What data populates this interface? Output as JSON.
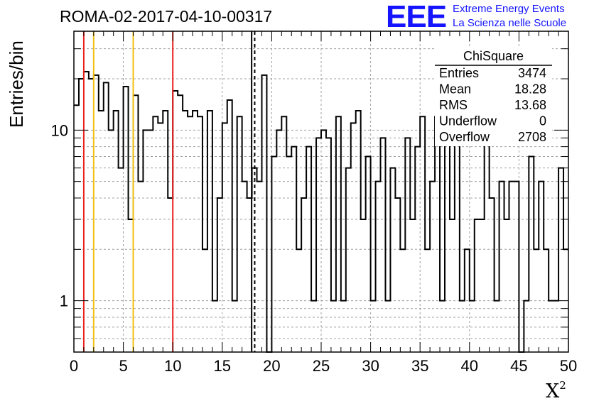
{
  "header": {
    "title": "ROMA-02-2017-04-10-00317",
    "logo_text": "EEE",
    "logo_line1": "Extreme Energy Events",
    "logo_line2": "La Scienza nelle Scuole"
  },
  "colors": {
    "axis": "#000000",
    "grid": "#a0a0a0",
    "histogram": "#000000",
    "red_marker": "#e8221f",
    "yellow_marker": "#f0c010",
    "logo": "#1414ff"
  },
  "chart_data": {
    "type": "bar",
    "histtype": "step",
    "xlabel": "X",
    "xlabel_sup": "2",
    "ylabel": "Entries/bin",
    "xlim": [
      0,
      50
    ],
    "ylim": [
      0.5,
      38
    ],
    "yscale": "log",
    "grid": true,
    "x_ticks": [
      0,
      5,
      10,
      15,
      20,
      25,
      30,
      35,
      40,
      45,
      50
    ],
    "y_ticks": [
      1,
      10
    ],
    "bin_width": 0.5,
    "values": [
      14,
      20,
      22,
      20,
      21,
      13,
      19,
      10,
      13,
      6,
      18,
      3,
      16,
      5,
      10,
      10,
      12,
      11,
      13,
      4,
      17,
      16,
      13,
      12,
      13,
      12,
      2,
      13,
      1,
      4,
      11,
      15,
      1,
      12,
      5,
      4,
      6,
      5,
      21,
      0.4,
      7,
      10,
      12,
      7,
      8,
      2,
      4,
      8,
      1,
      9,
      10,
      9,
      1,
      12,
      1,
      6,
      11,
      13,
      3,
      7,
      1,
      5,
      9,
      1,
      6,
      4,
      2,
      9,
      3,
      8,
      12,
      2,
      5,
      12,
      1,
      14,
      3,
      10,
      1,
      2,
      1,
      3,
      3,
      9,
      4,
      1,
      5,
      3,
      5,
      5,
      0.4,
      1,
      7,
      2,
      5,
      2,
      1,
      1,
      6,
      2
    ],
    "markers": [
      {
        "x": 1,
        "style": "red"
      },
      {
        "x": 2,
        "style": "yellow"
      },
      {
        "x": 6,
        "style": "yellow"
      },
      {
        "x": 10,
        "style": "red"
      },
      {
        "x": 18.28,
        "style": "black-dashed"
      },
      {
        "x": 17.97,
        "style": "black-solid"
      }
    ],
    "stats": {
      "title": "ChiSquare",
      "rows": [
        {
          "label": "Entries",
          "value": "3474"
        },
        {
          "label": "Mean",
          "value": "18.28"
        },
        {
          "label": "RMS",
          "value": "13.68"
        },
        {
          "label": "Underflow",
          "value": "0"
        },
        {
          "label": "Overflow",
          "value": "2708"
        }
      ]
    }
  }
}
